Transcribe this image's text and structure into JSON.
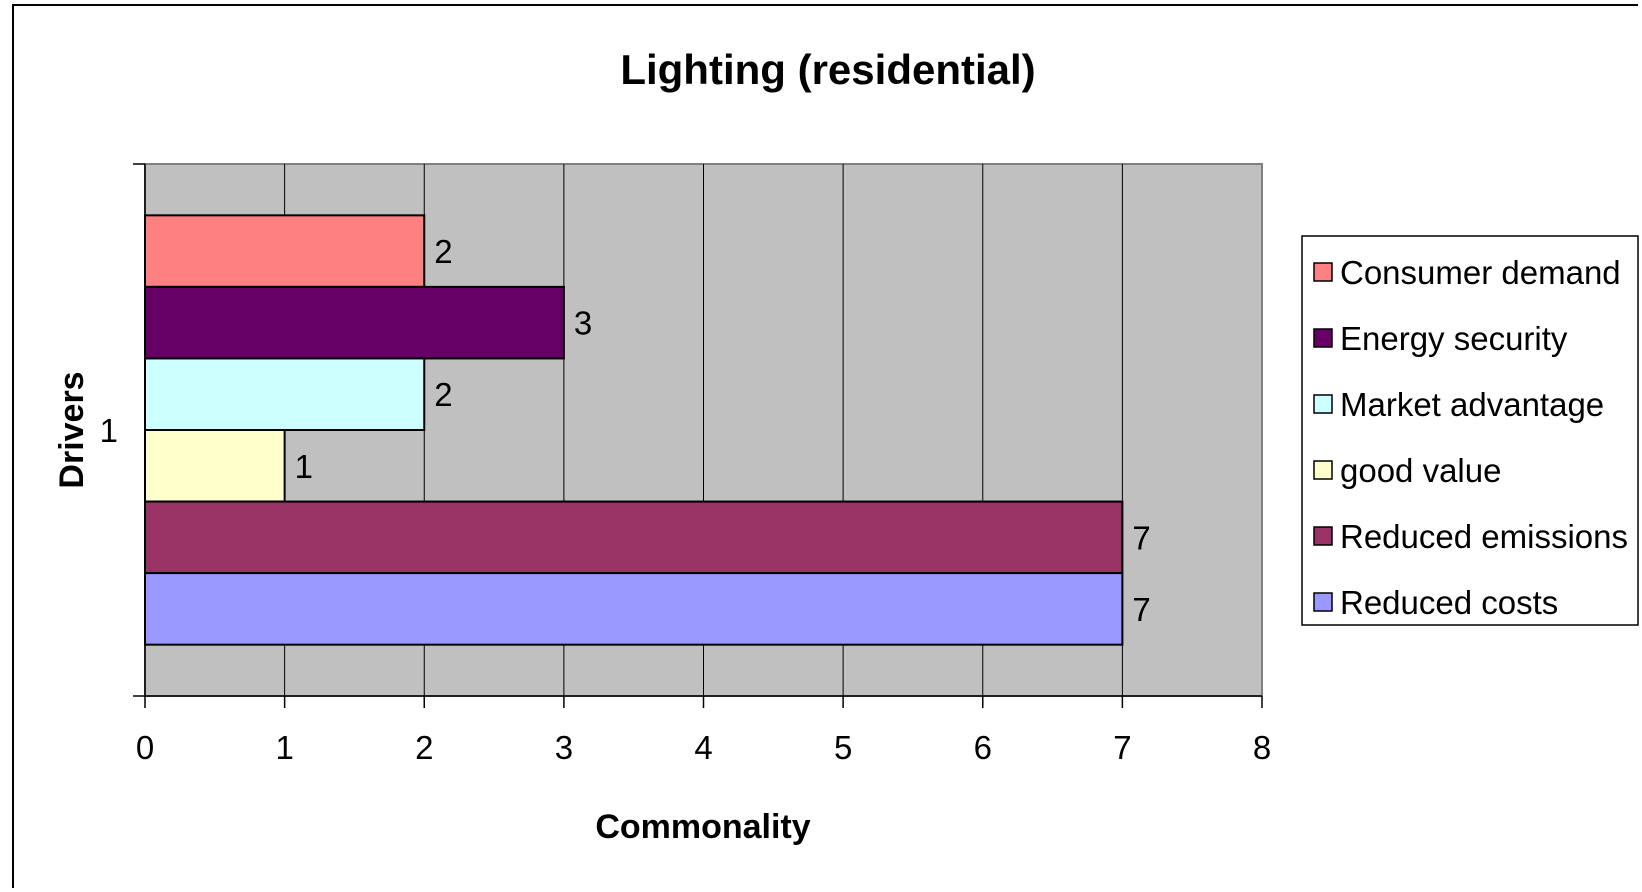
{
  "chart_data": {
    "type": "bar",
    "orientation": "horizontal",
    "title": "Lighting (residential)",
    "xlabel": "Commonality",
    "ylabel": "Drivers",
    "categories": [
      "1"
    ],
    "xlim": [
      0,
      8
    ],
    "x_ticks": [
      "0",
      "1",
      "2",
      "3",
      "4",
      "5",
      "6",
      "7",
      "8"
    ],
    "grid": true,
    "data_labels": true,
    "legend_position": "right",
    "series": [
      {
        "name": "Consumer demand",
        "values": [
          2
        ],
        "color": "#FF8080"
      },
      {
        "name": "Energy security",
        "values": [
          3
        ],
        "color": "#660066"
      },
      {
        "name": "Market advantage",
        "values": [
          2
        ],
        "color": "#CCFFFF"
      },
      {
        "name": "good value",
        "values": [
          1
        ],
        "color": "#FFFFCC"
      },
      {
        "name": "Reduced emissions",
        "values": [
          7
        ],
        "color": "#993366"
      },
      {
        "name": "Reduced costs",
        "values": [
          7
        ],
        "color": "#9999FF"
      }
    ],
    "plot_background": "#C0C0C0"
  }
}
